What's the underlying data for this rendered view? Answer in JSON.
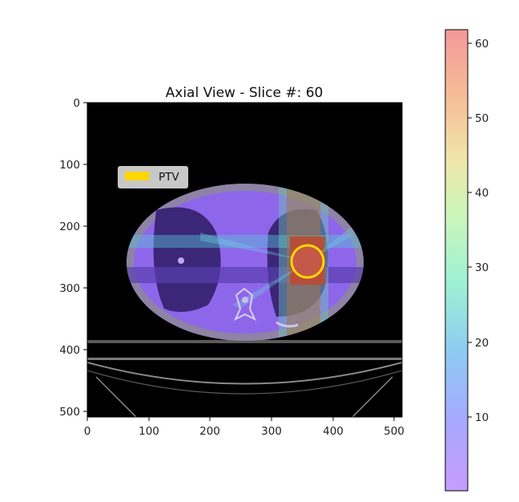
{
  "title": "Axial View - Slice #: 60",
  "legend": {
    "label": "PTV",
    "color": "#FFD700"
  },
  "x_axis": {
    "ticks": [
      "0",
      "100",
      "200",
      "300",
      "400",
      "500"
    ]
  },
  "y_axis": {
    "ticks": [
      "0",
      "100",
      "200",
      "300",
      "400",
      "500"
    ]
  },
  "colorbar": {
    "ticks": [
      "10",
      "20",
      "30",
      "40",
      "50",
      "60"
    ],
    "range": [
      0,
      62
    ],
    "colors": [
      "#C9A0FF",
      "#A0B4FF",
      "#8FD0F0",
      "#9EF0D8",
      "#C8F5C0",
      "#F2E6AA",
      "#F8C79C",
      "#F6A096",
      "#F49494"
    ]
  },
  "image": {
    "description_colors": {
      "background": "#000000",
      "body": "#8A63E8",
      "ptv": "#FFD700",
      "hotspot": "#C65A4B"
    }
  }
}
